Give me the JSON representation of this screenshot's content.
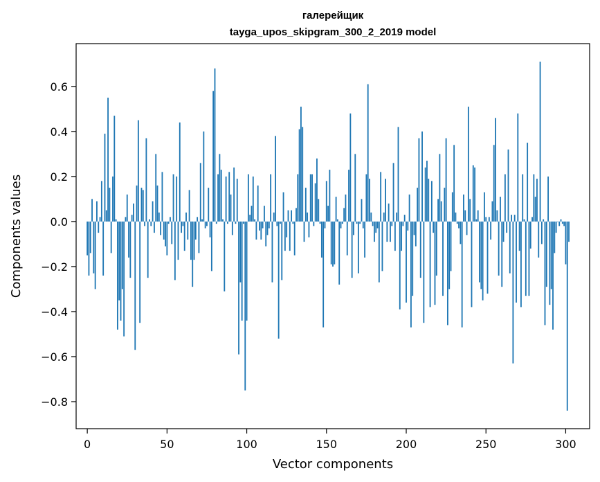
{
  "chart_data": {
    "type": "bar",
    "title": "галерейщик",
    "subtitle": "tayga_upos_skipgram_300_2_2019 model",
    "xlabel": "Vector components",
    "ylabel": "Components values",
    "xlim": [
      -7,
      315
    ],
    "ylim": [
      -0.92,
      0.79
    ],
    "xticks": [
      0,
      50,
      100,
      150,
      200,
      250,
      300
    ],
    "xtick_labels": [
      "0",
      "50",
      "100",
      "150",
      "200",
      "250",
      "300"
    ],
    "yticks": [
      -0.8,
      -0.6,
      -0.4,
      -0.2,
      0.0,
      0.2,
      0.4,
      0.6
    ],
    "ytick_labels": [
      "−0.8",
      "−0.6",
      "−0.4",
      "−0.2",
      "0.0",
      "0.2",
      "0.4",
      "0.6"
    ],
    "bar_color": "#1f77b4",
    "grid": false,
    "values": [
      -0.15,
      -0.24,
      -0.14,
      0.1,
      -0.23,
      -0.3,
      0.09,
      -0.05,
      0.02,
      0.18,
      -0.24,
      0.39,
      0.05,
      0.55,
      0.15,
      -0.14,
      0.2,
      0.47,
      0.01,
      -0.48,
      -0.35,
      -0.44,
      -0.3,
      -0.51,
      0.02,
      0.12,
      -0.16,
      -0.25,
      0.03,
      0.08,
      -0.57,
      0.16,
      0.45,
      -0.45,
      0.15,
      0.14,
      -0.02,
      0.37,
      -0.25,
      0.01,
      -0.02,
      0.09,
      -0.05,
      0.3,
      0.16,
      0.04,
      -0.06,
      0.22,
      -0.08,
      -0.11,
      -0.15,
      -0.01,
      0.02,
      -0.1,
      0.21,
      -0.26,
      0.2,
      -0.17,
      0.44,
      -0.05,
      -0.02,
      -0.13,
      0.04,
      -0.08,
      0.14,
      -0.17,
      -0.29,
      -0.17,
      -0.08,
      0.02,
      -0.14,
      0.26,
      0.01,
      0.4,
      -0.03,
      -0.02,
      0.15,
      -0.07,
      -0.22,
      0.58,
      0.68,
      -0.01,
      0.21,
      0.3,
      0.23,
      0.01,
      -0.31,
      0.2,
      -0.01,
      0.22,
      0.12,
      -0.06,
      0.24,
      -0.01,
      0.19,
      -0.59,
      -0.27,
      -0.44,
      -0.01,
      -0.75,
      -0.44,
      0.21,
      0.03,
      0.07,
      0.2,
      0.01,
      -0.08,
      0.16,
      -0.04,
      -0.08,
      -0.03,
      0.07,
      -0.11,
      -0.06,
      -0.03,
      0.21,
      -0.27,
      0.04,
      0.38,
      -0.02,
      -0.52,
      -0.01,
      -0.26,
      0.13,
      -0.13,
      -0.07,
      0.05,
      -0.13,
      0.05,
      -0.01,
      -0.15,
      0.06,
      0.21,
      0.41,
      0.51,
      0.42,
      -0.09,
      0.15,
      0.04,
      -0.07,
      0.21,
      0.21,
      -0.02,
      0.17,
      0.28,
      0.1,
      -0.01,
      -0.16,
      -0.47,
      -0.03,
      0.18,
      0.07,
      0.23,
      -0.19,
      -0.2,
      -0.19,
      0.11,
      0.01,
      -0.28,
      -0.03,
      -0.01,
      0.06,
      0.12,
      -0.15,
      0.23,
      0.48,
      -0.25,
      -0.06,
      0.3,
      -0.01,
      -0.23,
      -0.01,
      0.1,
      -0.03,
      -0.16,
      0.21,
      0.61,
      0.19,
      0.04,
      -0.02,
      -0.09,
      -0.05,
      -0.03,
      -0.27,
      0.22,
      -0.22,
      0.04,
      0.19,
      -0.09,
      0.08,
      -0.09,
      -0.02,
      0.26,
      -0.13,
      0.04,
      0.42,
      -0.39,
      -0.13,
      -0.02,
      0.03,
      -0.36,
      -0.04,
      0.12,
      -0.47,
      -0.33,
      -0.06,
      -0.11,
      0.15,
      0.37,
      -0.25,
      0.4,
      -0.45,
      0.24,
      0.27,
      0.19,
      -0.38,
      0.18,
      -0.05,
      -0.37,
      -0.24,
      0.1,
      0.3,
      0.09,
      -0.33,
      0.15,
      0.37,
      -0.46,
      -0.3,
      -0.22,
      0.13,
      0.34,
      0.04,
      -0.01,
      -0.03,
      -0.1,
      -0.47,
      0.12,
      0.05,
      -0.06,
      0.51,
      0.1,
      -0.38,
      0.25,
      0.24,
      0.01,
      0.05,
      -0.27,
      -0.3,
      -0.35,
      0.13,
      0.02,
      -0.32,
      0.02,
      -0.08,
      0.09,
      0.34,
      0.46,
      0.05,
      -0.24,
      0.11,
      -0.29,
      -0.09,
      0.21,
      -0.05,
      0.32,
      -0.23,
      0.03,
      -0.63,
      0.03,
      -0.36,
      0.48,
      -0.13,
      -0.38,
      0.21,
      0.01,
      -0.33,
      0.35,
      -0.33,
      -0.12,
      0.02,
      0.21,
      0.11,
      0.19,
      -0.16,
      0.71,
      -0.1,
      0.01,
      -0.46,
      -0.29,
      0.2,
      -0.37,
      -0.3,
      -0.48,
      -0.14,
      -0.05,
      0.0,
      -0.02,
      0.01,
      -0.01,
      -0.02,
      -0.19,
      -0.84,
      -0.09
    ]
  }
}
